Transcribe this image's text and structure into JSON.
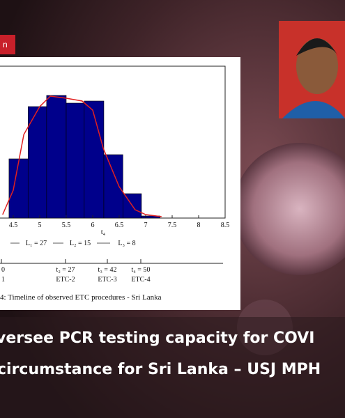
{
  "tag": "n",
  "figure": {
    "histogram": {
      "bins": [
        4.42,
        4.78,
        5.13,
        5.5,
        5.84,
        6.21,
        6.57,
        6.92,
        7.27
      ],
      "counts": [
        0.85,
        1.6,
        1.76,
        1.65,
        1.68,
        0.91,
        0.35,
        0.03
      ],
      "color": "#00008b",
      "ylim": [
        0,
        2
      ]
    },
    "curve": {
      "color": "#e02020",
      "x": [
        4.3,
        4.5,
        4.7,
        5.0,
        5.2,
        5.5,
        5.8,
        6.0,
        6.2,
        6.5,
        6.8,
        7.0,
        7.3
      ],
      "y": [
        0.05,
        0.4,
        1.2,
        1.6,
        1.75,
        1.72,
        1.68,
        1.55,
        1.0,
        0.45,
        0.12,
        0.05,
        0.02
      ]
    },
    "xlim": [
      4.25,
      8.5
    ],
    "xticks": [
      4.5,
      5,
      5.5,
      6,
      6.5,
      7,
      7.5,
      8,
      8.5
    ],
    "xlabel": "t₄",
    "intervals": [
      "L₁  =  27",
      "L₂  =  15",
      "L₃  =  8"
    ],
    "timeline_top": [
      "0",
      "t₂ = 27",
      "t₃ = 42",
      "t₄ = 50"
    ],
    "timeline_bottom": [
      "1",
      "ETC-2",
      "ETC-3",
      "ETC-4"
    ],
    "caption": "4:  Timeline of observed ETC procedures - Sri Lanka"
  },
  "headline": [
    "versee PCR testing capacity for COVI",
    "circumstance for Sri Lanka – USJ MPH"
  ]
}
